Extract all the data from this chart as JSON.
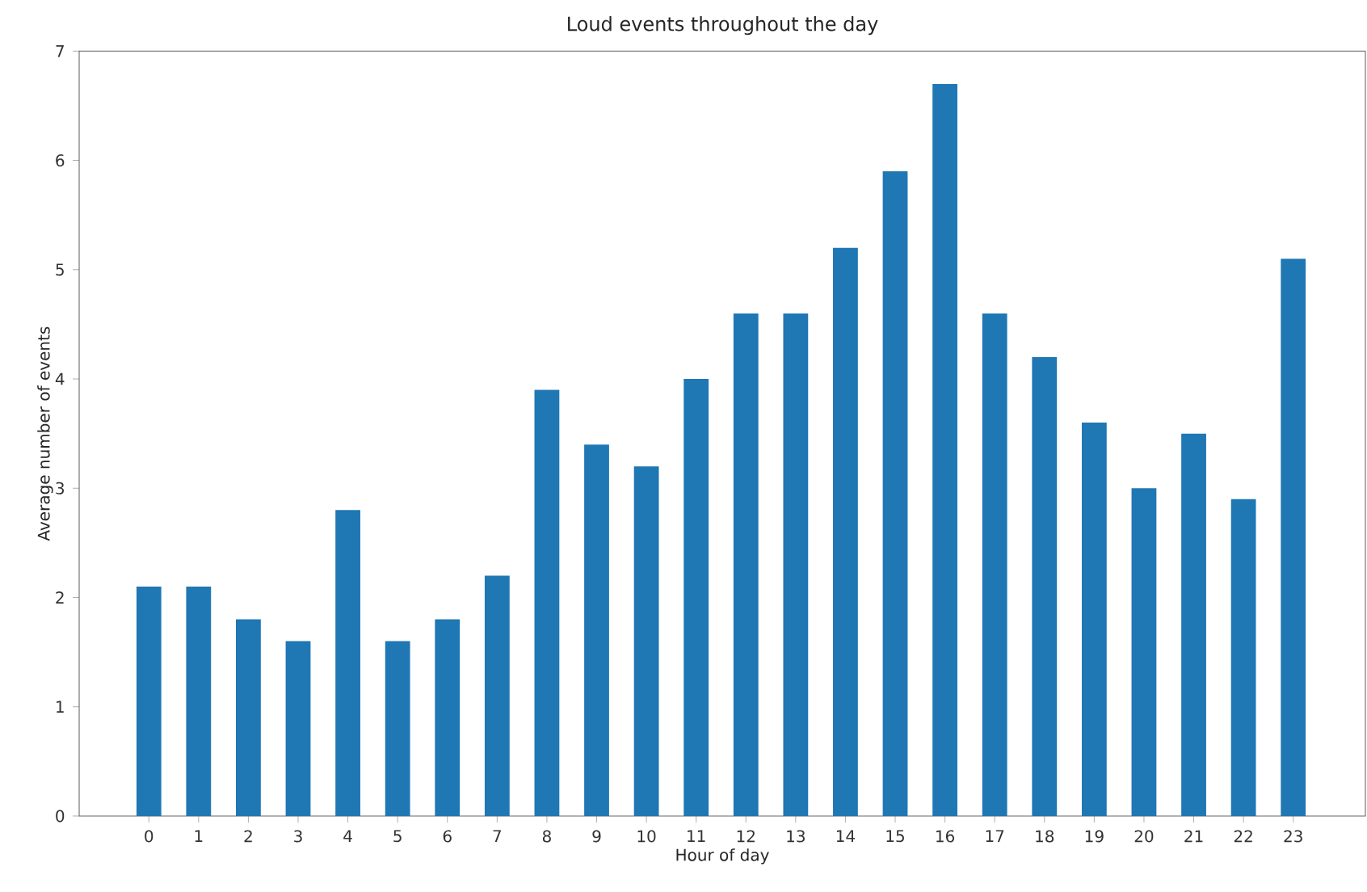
{
  "chart_data": {
    "type": "bar",
    "title": "Loud events throughout the day",
    "xlabel": "Hour of day",
    "ylabel": "Average number of events",
    "categories": [
      "0",
      "1",
      "2",
      "3",
      "4",
      "5",
      "6",
      "7",
      "8",
      "9",
      "10",
      "11",
      "12",
      "13",
      "14",
      "15",
      "16",
      "17",
      "18",
      "19",
      "20",
      "21",
      "22",
      "23"
    ],
    "values": [
      2.1,
      2.1,
      1.8,
      1.6,
      2.8,
      1.6,
      1.8,
      2.2,
      3.9,
      3.4,
      3.2,
      4.0,
      4.6,
      4.6,
      5.2,
      5.9,
      6.7,
      4.6,
      4.2,
      3.6,
      3.0,
      3.5,
      2.9,
      5.1
    ],
    "color": "#1f77b4",
    "ylim": [
      0,
      7
    ],
    "yticks": [
      0,
      1,
      2,
      3,
      4,
      5,
      6,
      7
    ],
    "grid": false
  }
}
